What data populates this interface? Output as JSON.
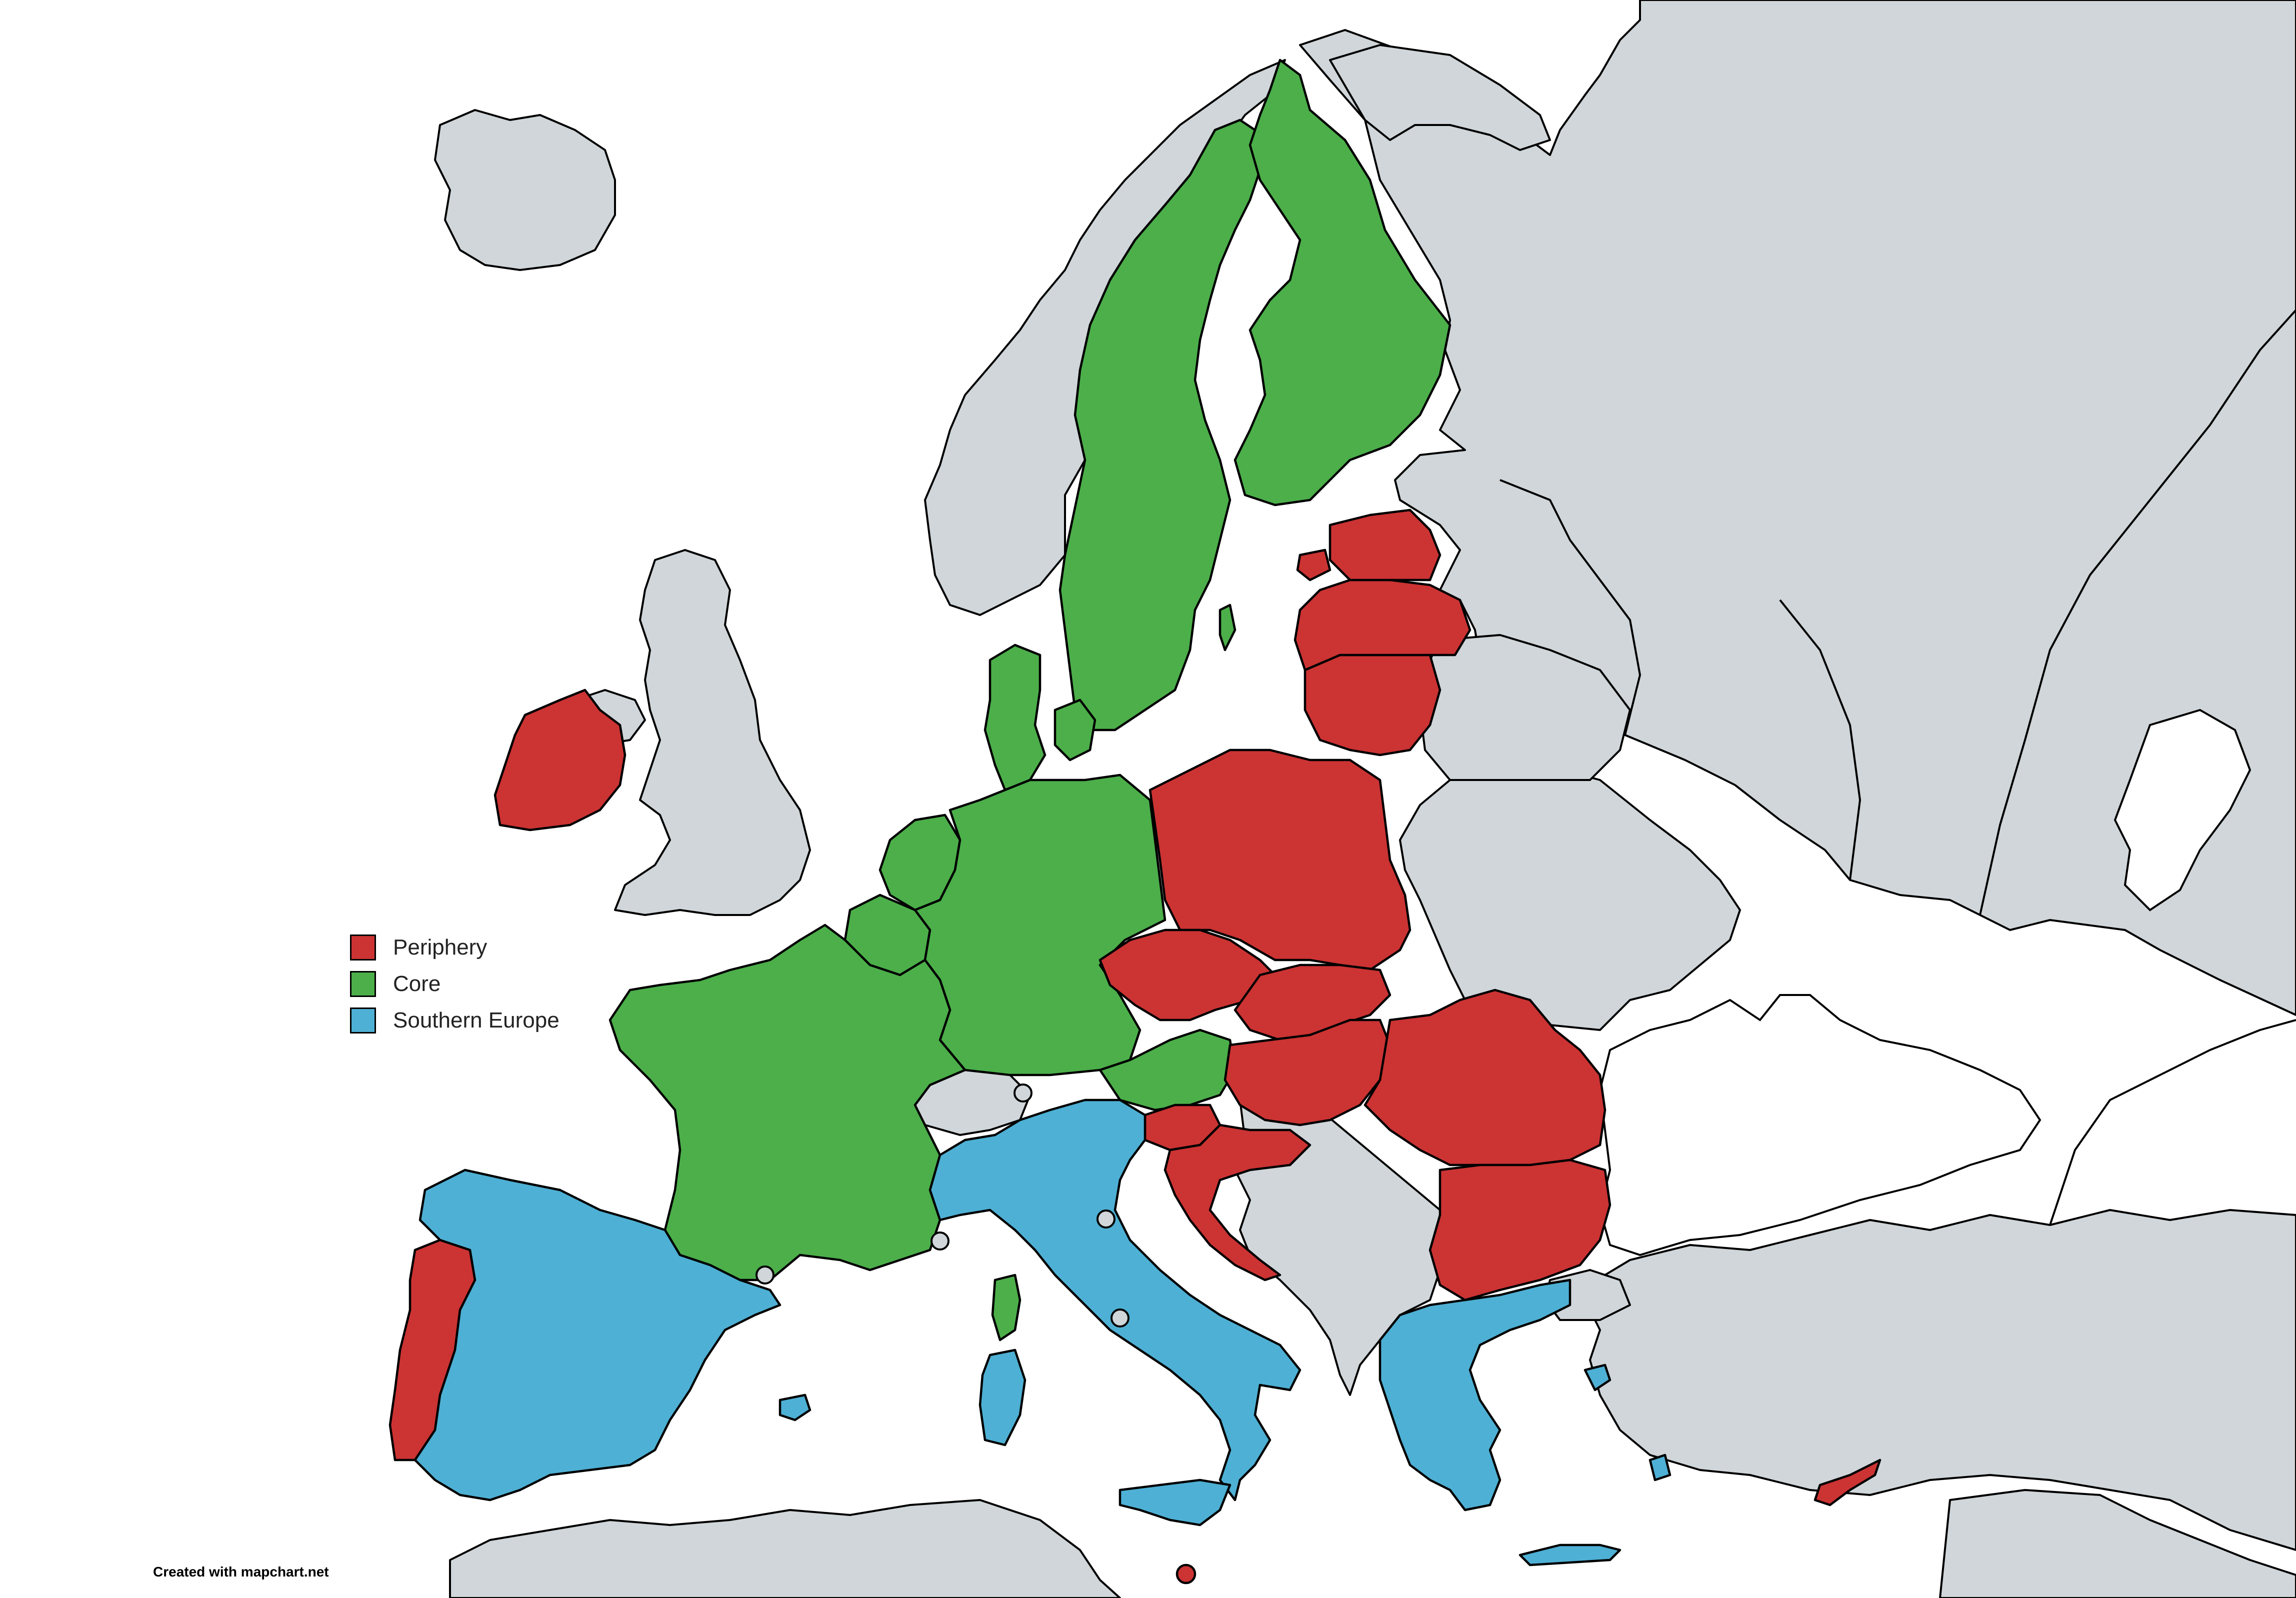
{
  "map": {
    "colors": {
      "periphery": "#cc3333",
      "core": "#4caf4a",
      "southern_europe": "#4eb0d4",
      "other_land": "#d0d6d9",
      "water": "#ffffff"
    }
  },
  "legend": {
    "items": [
      {
        "label": "Periphery",
        "color": "#cc3333"
      },
      {
        "label": "Core",
        "color": "#4caf4a"
      },
      {
        "label": "Southern Europe",
        "color": "#4eb0d4"
      }
    ]
  },
  "credit": "Created with mapchart.net"
}
